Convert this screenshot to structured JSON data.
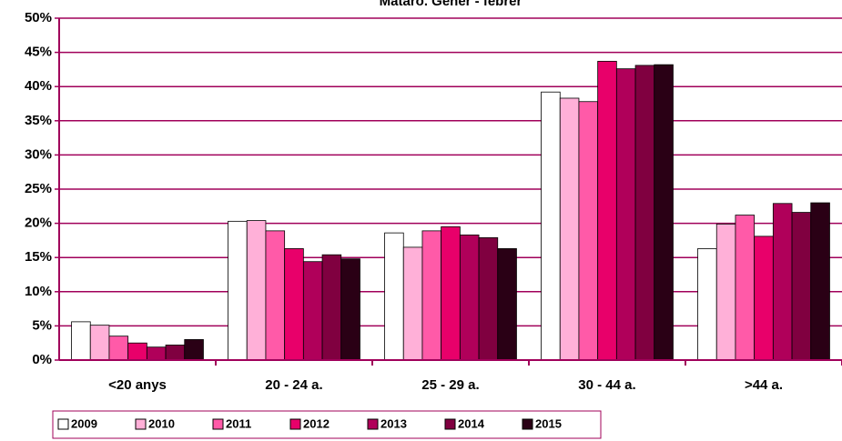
{
  "chart_data": {
    "type": "bar",
    "title": "Mataró. Gener - febrer",
    "categories": [
      "<20 anys",
      "20 - 24 a.",
      "25 - 29 a.",
      "30 - 44 a.",
      ">44 a."
    ],
    "series": [
      {
        "name": "2009",
        "color": "#ffffff",
        "values": [
          5.6,
          20.3,
          18.6,
          39.2,
          16.3
        ]
      },
      {
        "name": "2010",
        "color": "#ffb0d8",
        "values": [
          5.1,
          20.4,
          16.5,
          38.3,
          19.9
        ]
      },
      {
        "name": "2011",
        "color": "#ff5aa8",
        "values": [
          3.5,
          18.9,
          18.9,
          37.8,
          21.2
        ]
      },
      {
        "name": "2012",
        "color": "#e8006a",
        "values": [
          2.5,
          16.3,
          19.5,
          43.7,
          18.1
        ]
      },
      {
        "name": "2013",
        "color": "#b0005a",
        "values": [
          1.9,
          14.4,
          18.3,
          42.6,
          22.9
        ]
      },
      {
        "name": "2014",
        "color": "#800040",
        "values": [
          2.2,
          15.4,
          17.9,
          43.1,
          21.6
        ]
      },
      {
        "name": "2015",
        "color": "#2a0015",
        "values": [
          3.0,
          14.8,
          16.3,
          43.2,
          23.0
        ]
      }
    ],
    "ylim": [
      0,
      50
    ],
    "yticks": [
      {
        "value": 0,
        "label": "0%"
      },
      {
        "value": 5,
        "label": "5%"
      },
      {
        "value": 10,
        "label": "10%"
      },
      {
        "value": 15,
        "label": "15%"
      },
      {
        "value": 20,
        "label": "20%"
      },
      {
        "value": 25,
        "label": "25%"
      },
      {
        "value": 30,
        "label": "30%"
      },
      {
        "value": 35,
        "label": "35%"
      },
      {
        "value": 40,
        "label": "40%"
      },
      {
        "value": 45,
        "label": "45%"
      },
      {
        "value": 50,
        "label": "50%"
      }
    ],
    "grid": true
  }
}
